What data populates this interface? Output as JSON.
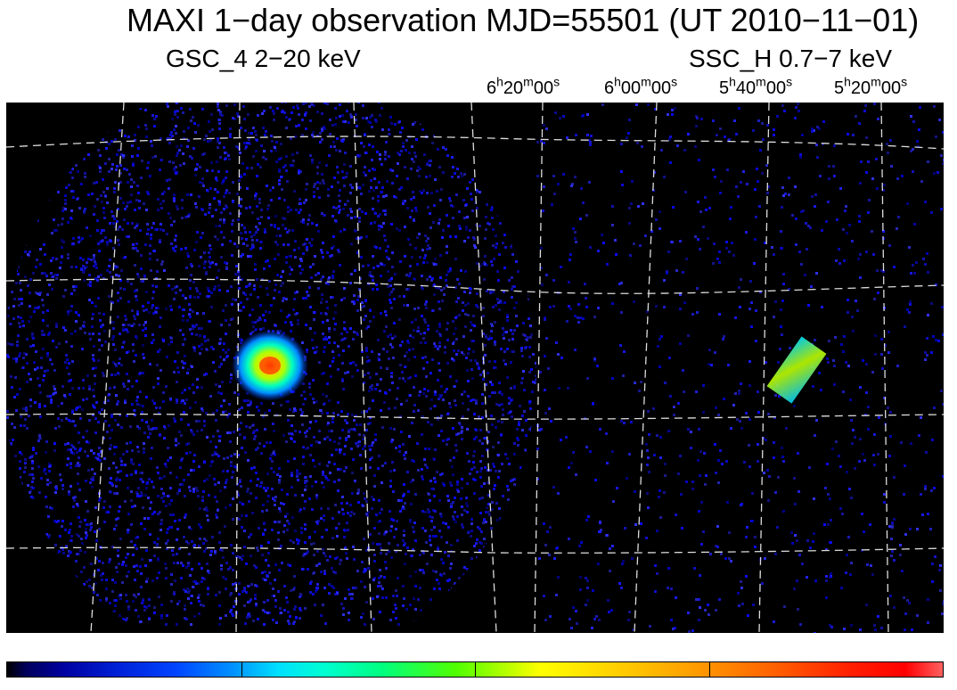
{
  "title": "MAXI 1−day observation MJD=55501 (UT 2010−11−01)",
  "panels": {
    "left_label": "GSC_4 2−20 keV",
    "right_label": "SSC_H 0.7−7 keV"
  },
  "ra_labels": [
    {
      "h": "6",
      "m": "20",
      "s": "00"
    },
    {
      "h": "6",
      "m": "00",
      "s": "00"
    },
    {
      "h": "5",
      "m": "40",
      "s": "00"
    },
    {
      "h": "5",
      "m": "20",
      "s": "00"
    }
  ],
  "units": {
    "h": "h",
    "m": "m",
    "s": "s"
  },
  "colors": {
    "background": "#000000",
    "grid": "#dddddd",
    "photon": "#1a1aff"
  }
}
